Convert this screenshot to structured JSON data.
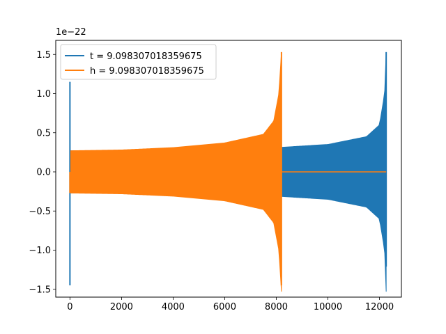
{
  "chart_data": {
    "type": "line",
    "title": "",
    "xlabel": "",
    "ylabel": "",
    "offset_label": "1e−22",
    "xlim": [
      -550,
      12850
    ],
    "ylim": [
      -1.6,
      1.68
    ],
    "xticks": [
      0,
      2000,
      4000,
      6000,
      8000,
      10000,
      12000
    ],
    "xtick_labels": [
      "0",
      "2000",
      "4000",
      "6000",
      "8000",
      "10000",
      "12000"
    ],
    "yticks": [
      -1.5,
      -1.0,
      -0.5,
      0.0,
      0.5,
      1.0,
      1.5
    ],
    "ytick_labels": [
      "−1.5",
      "−1.0",
      "−0.5",
      "0.0",
      "0.5",
      "1.0",
      "1.5"
    ],
    "grid": false,
    "legend_position": "top-left",
    "series": [
      {
        "name": "t = 9.098307018359675",
        "color": "#1f77b4",
        "start_spike": {
          "x": 0,
          "max": 1.15,
          "min": -1.45
        },
        "envelope": {
          "x": [
            0,
            2000,
            4000,
            6000,
            8000,
            10000,
            11500,
            12000,
            12200,
            12260
          ],
          "amp": [
            0.27,
            0.27,
            0.28,
            0.29,
            0.31,
            0.35,
            0.45,
            0.6,
            1.0,
            1.53
          ]
        },
        "end_spike": {
          "x": 12260,
          "max": 1.53,
          "min": -1.21
        }
      },
      {
        "name": "h = 9.098307018359675",
        "color": "#ff7f0e",
        "start_spike": {
          "x": 0,
          "max": 0.0,
          "min": -0.27
        },
        "envelope": {
          "x": [
            30,
            2000,
            4000,
            6000,
            7500,
            7900,
            8100,
            8200
          ],
          "amp": [
            0.27,
            0.28,
            0.31,
            0.37,
            0.48,
            0.65,
            1.0,
            1.53
          ]
        },
        "end_spike": {
          "x": 8200,
          "max": 1.53,
          "min": -1.45
        },
        "flat_segment": {
          "x": [
            8200,
            12260
          ],
          "y": 0.0
        }
      }
    ]
  }
}
